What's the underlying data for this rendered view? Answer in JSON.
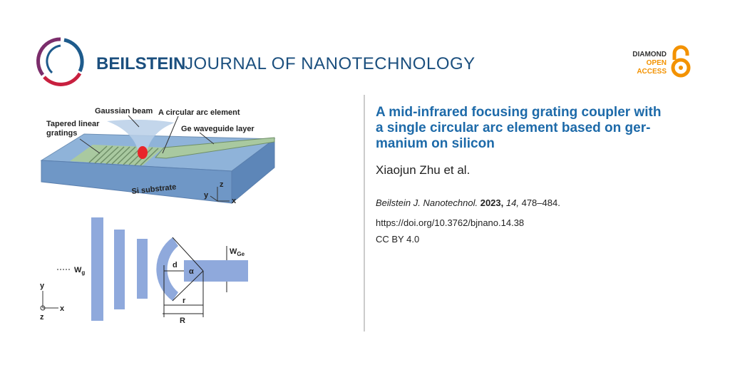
{
  "header": {
    "brand": "BEILSTEIN",
    "journal": "JOURNAL OF NANOTECHNOLOGY"
  },
  "badge": {
    "line1": "DIAMOND",
    "line2": "OPEN",
    "line3": "ACCESS"
  },
  "figure": {
    "beam": "Gaussian beam",
    "arc": "A circular arc element",
    "tapered": "Tapered linear",
    "gratings": "gratings",
    "waveguide": "Ge waveguide layer",
    "substrate": "Si substrate",
    "axis_y": "y",
    "axis_z": "z",
    "axis_x": "x",
    "wg_main": "W",
    "wg_sub": "g",
    "d": "d",
    "alpha": "α",
    "r": "r",
    "R": "R",
    "wge_main": "W",
    "wge_sub": "Ge",
    "axis2_y": "y",
    "axis2_x": "x",
    "axis2_z": "z"
  },
  "article": {
    "title_lines": [
      "A mid-infrared focusing grating coupler with",
      "a single circular arc element based on ger-",
      "manium on silicon"
    ],
    "authors": "Xiaojun Zhu et al.",
    "journal": "Beilstein J. Nanotechnol.",
    "year": "2023,",
    "volume": "14,",
    "pages": "478–484.",
    "doi": "https://doi.org/10.3762/bjnano.14.38",
    "license": "CC BY 4.0"
  }
}
